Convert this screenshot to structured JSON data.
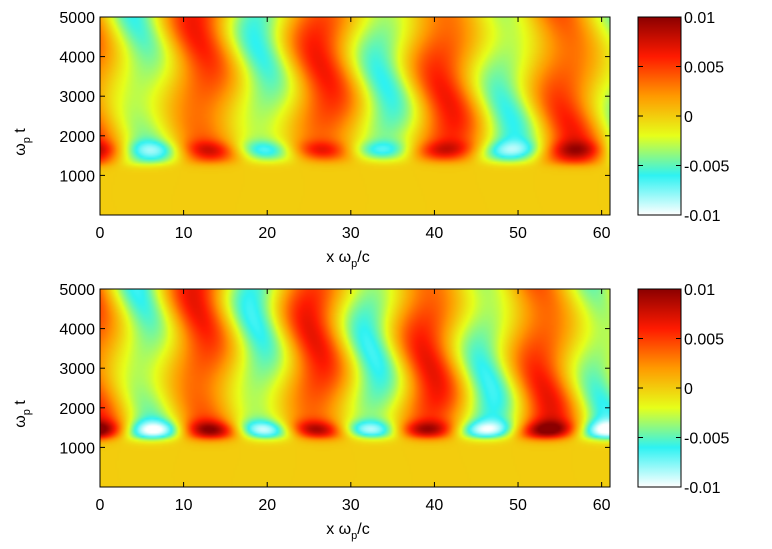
{
  "colorbar_colors": [
    "#ffffff",
    "#2ef2f2",
    "#e6ff1a",
    "#ff9a00",
    "#ff1a00",
    "#8b0000"
  ],
  "chart_data": [
    {
      "type": "heatmap",
      "panel": "top",
      "xlabel_main": "x ω",
      "xlabel_sub": "p",
      "xlabel_tail": "/c",
      "ylabel_main": "ω",
      "ylabel_sub": "p",
      "ylabel_tail": " t",
      "xlim": [
        0,
        61
      ],
      "ylim": [
        0,
        5000
      ],
      "xticks": [
        0,
        10,
        20,
        30,
        40,
        50,
        60
      ],
      "xtick_labels": [
        "0",
        "10",
        "20",
        "30",
        "40",
        "50",
        "60"
      ],
      "yticks": [
        1000,
        2000,
        3000,
        4000,
        5000
      ],
      "ytick_labels": [
        "1000",
        "2000",
        "3000",
        "4000",
        "5000"
      ],
      "clim": [
        -0.01,
        0.01
      ],
      "colorbar_ticks": [
        0.01,
        0.005,
        0,
        -0.005,
        -0.01
      ],
      "colorbar_labels": [
        "0.01",
        "0.005",
        "0",
        "-0.005",
        "-0.01"
      ],
      "colorscale": "jet",
      "field_model": {
        "wavelength": 14.5,
        "phase_offset": 2.4,
        "onset_center_t": 1350,
        "onset_curvature": 0.12,
        "mid_x": 30,
        "base_amplitude": 0.0062,
        "burst_t": 1650,
        "burst_amplitude": 0.0035
      }
    },
    {
      "type": "heatmap",
      "panel": "bottom",
      "xlabel_main": "x ω",
      "xlabel_sub": "p",
      "xlabel_tail": "/c",
      "ylabel_main": "ω",
      "ylabel_sub": "p",
      "ylabel_tail": " t",
      "xlim": [
        0,
        61
      ],
      "ylim": [
        0,
        5000
      ],
      "xticks": [
        0,
        10,
        20,
        30,
        40,
        50,
        60
      ],
      "xtick_labels": [
        "0",
        "10",
        "20",
        "30",
        "40",
        "50",
        "60"
      ],
      "yticks": [
        1000,
        2000,
        3000,
        4000,
        5000
      ],
      "ytick_labels": [
        "1000",
        "2000",
        "3000",
        "4000",
        "5000"
      ],
      "clim": [
        -0.01,
        0.01
      ],
      "colorbar_ticks": [
        0.01,
        0.005,
        0,
        -0.005,
        -0.01
      ],
      "colorbar_labels": [
        "0.01",
        "0.005",
        "0",
        "-0.005",
        "-0.01"
      ],
      "colorscale": "jet",
      "field_model": {
        "wavelength": 13.6,
        "phase_offset": 2.1,
        "onset_center_t": 1200,
        "onset_curvature": 0.0,
        "mid_x": 30,
        "base_amplitude": 0.0066,
        "burst_t": 1450,
        "burst_amplitude": 0.0055
      }
    }
  ]
}
